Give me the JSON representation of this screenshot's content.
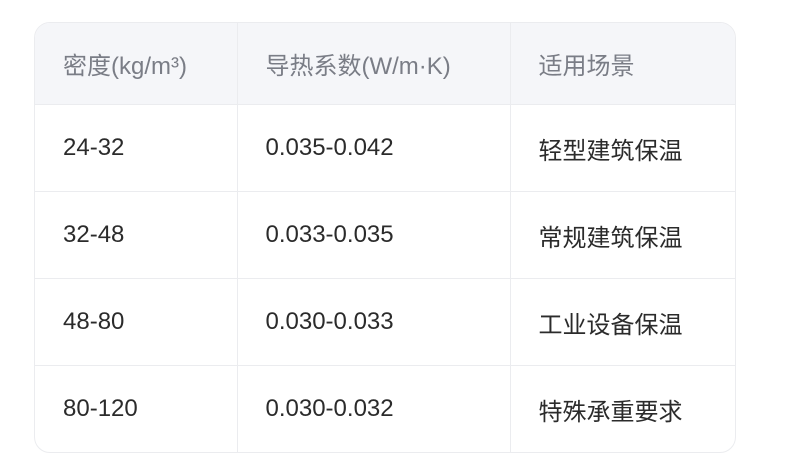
{
  "table": {
    "headers": [
      "密度(kg/m³)",
      "导热系数(W/m·K)",
      "适用场景"
    ],
    "rows": [
      [
        "24-32",
        "0.035-0.042",
        "轻型建筑保温"
      ],
      [
        "32-48",
        "0.033-0.035",
        "常规建筑保温"
      ],
      [
        "48-80",
        "0.030-0.033",
        "工业设备保温"
      ],
      [
        "80-120",
        "0.030-0.032",
        "特殊承重要求"
      ]
    ]
  }
}
